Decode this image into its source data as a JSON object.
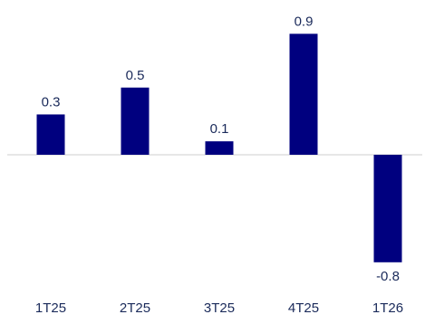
{
  "chart_data": {
    "type": "bar",
    "categories": [
      "1T25",
      "2T25",
      "3T25",
      "4T25",
      "1T26"
    ],
    "values": [
      0.3,
      0.5,
      0.1,
      0.9,
      -0.8
    ],
    "value_labels": [
      "0.3",
      "0.5",
      "0.1",
      "0.9",
      "-0.8"
    ],
    "title": "",
    "xlabel": "",
    "ylabel": "",
    "ylim": [
      -0.8,
      0.9
    ],
    "grid": false,
    "legend": "none",
    "bar_color": "#00007f",
    "baseline_color": "#cfcfcf",
    "label_color": "#1a2a5a"
  }
}
